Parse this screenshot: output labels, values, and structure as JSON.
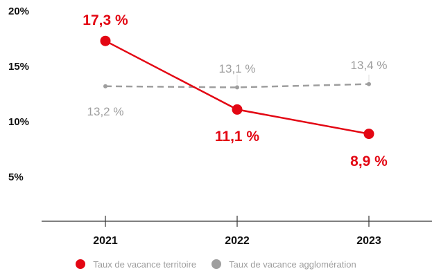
{
  "chart_data": {
    "type": "line",
    "categories": [
      "2021",
      "2022",
      "2023"
    ],
    "y_ticks": [
      "20%",
      "15%",
      "10%",
      "5%"
    ],
    "y_tick_values": [
      20,
      15,
      10,
      5
    ],
    "ylim": [
      0,
      20
    ],
    "grid": false,
    "legend_position": "bottom",
    "series": [
      {
        "name": "Taux de vacance territoire",
        "values": [
          17.3,
          11.1,
          8.9
        ],
        "labels": [
          "17,3 %",
          "11,1 %",
          "8,9 %"
        ],
        "color": "#e30613",
        "style": "solid"
      },
      {
        "name": "Taux de vacance agglomération",
        "values": [
          13.2,
          13.1,
          13.4
        ],
        "labels": [
          "13,2 %",
          "13,1 %",
          "13,4 %"
        ],
        "color": "#9e9e9e",
        "style": "dashed"
      }
    ]
  }
}
